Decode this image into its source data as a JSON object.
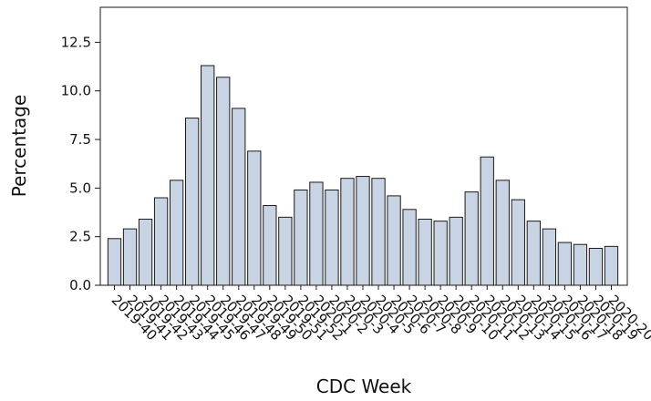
{
  "chart_data": {
    "type": "bar",
    "xlabel": "CDC Week",
    "ylabel": "Percentage",
    "ylim": [
      0,
      14.3
    ],
    "yticks": [
      0.0,
      2.5,
      5.0,
      7.5,
      10.0,
      12.5
    ],
    "ytick_labels": [
      "0.0",
      "2.5",
      "5.0",
      "7.5",
      "10.0",
      "12.5"
    ],
    "grid": false,
    "legend": "none",
    "bar_fill": "#c8d3e3",
    "bar_stroke": "#1a1a1a",
    "categories": [
      "2019-40",
      "2019-41",
      "2019-42",
      "2019-43",
      "2019-44",
      "2019-45",
      "2019-46",
      "2019-47",
      "2019-48",
      "2019-49",
      "2019-50",
      "2019-51",
      "2019-52",
      "2020-1",
      "2020-2",
      "2020-3",
      "2020-4",
      "2020-5",
      "2020-6",
      "2020-7",
      "2020-8",
      "2020-9",
      "2020-10",
      "2020-11",
      "2020-12",
      "2020-13",
      "2020-14",
      "2020-15",
      "2020-16",
      "2020-17",
      "2020-18",
      "2020-19",
      "2020-20"
    ],
    "values": [
      2.4,
      2.9,
      3.4,
      4.5,
      5.4,
      8.6,
      11.3,
      10.7,
      9.1,
      6.9,
      4.1,
      3.5,
      4.9,
      5.3,
      4.9,
      5.5,
      5.6,
      5.5,
      4.6,
      3.9,
      3.4,
      3.3,
      3.5,
      4.8,
      6.6,
      5.4,
      4.4,
      3.3,
      2.9,
      2.2,
      2.1,
      1.9,
      2.0
    ]
  }
}
